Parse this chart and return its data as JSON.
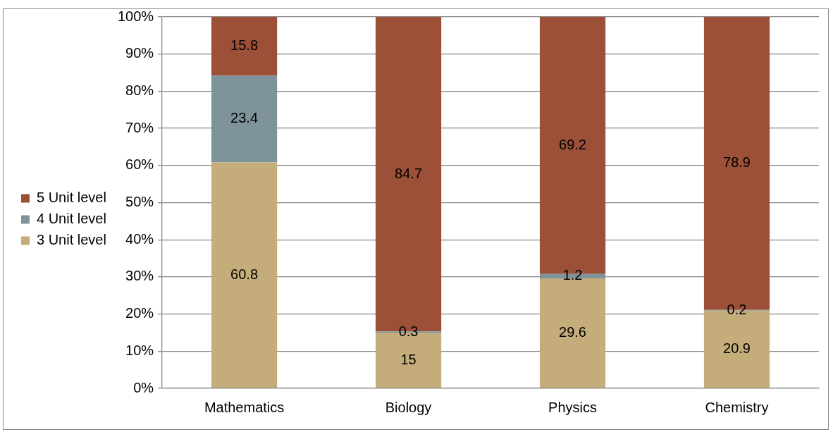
{
  "chart_data": {
    "type": "bar",
    "stacked": true,
    "categories": [
      "Mathematics",
      "Biology",
      "Physics",
      "Chemistry"
    ],
    "series": [
      {
        "name": "3 Unit level",
        "color": "#c4ad7a",
        "values": [
          60.8,
          15,
          29.6,
          20.9
        ]
      },
      {
        "name": "4 Unit level",
        "color": "#7f939b",
        "values": [
          23.4,
          0.3,
          1.2,
          0.2
        ]
      },
      {
        "name": "5 Unit level",
        "color": "#9b5037",
        "values": [
          15.8,
          84.7,
          69.2,
          78.9
        ]
      }
    ],
    "ylim": [
      0,
      100
    ],
    "yticks": [
      {
        "value": 0,
        "label": "0%"
      },
      {
        "value": 10,
        "label": "10%"
      },
      {
        "value": 20,
        "label": "20%"
      },
      {
        "value": 30,
        "label": "30%"
      },
      {
        "value": 40,
        "label": "40%"
      },
      {
        "value": 50,
        "label": "50%"
      },
      {
        "value": 60,
        "label": "60%"
      },
      {
        "value": 70,
        "label": "70%"
      },
      {
        "value": 80,
        "label": "80%"
      },
      {
        "value": 90,
        "label": "90%"
      },
      {
        "value": 100,
        "label": "100%"
      }
    ],
    "grid": "y",
    "legend": "left",
    "data_labels": true
  }
}
